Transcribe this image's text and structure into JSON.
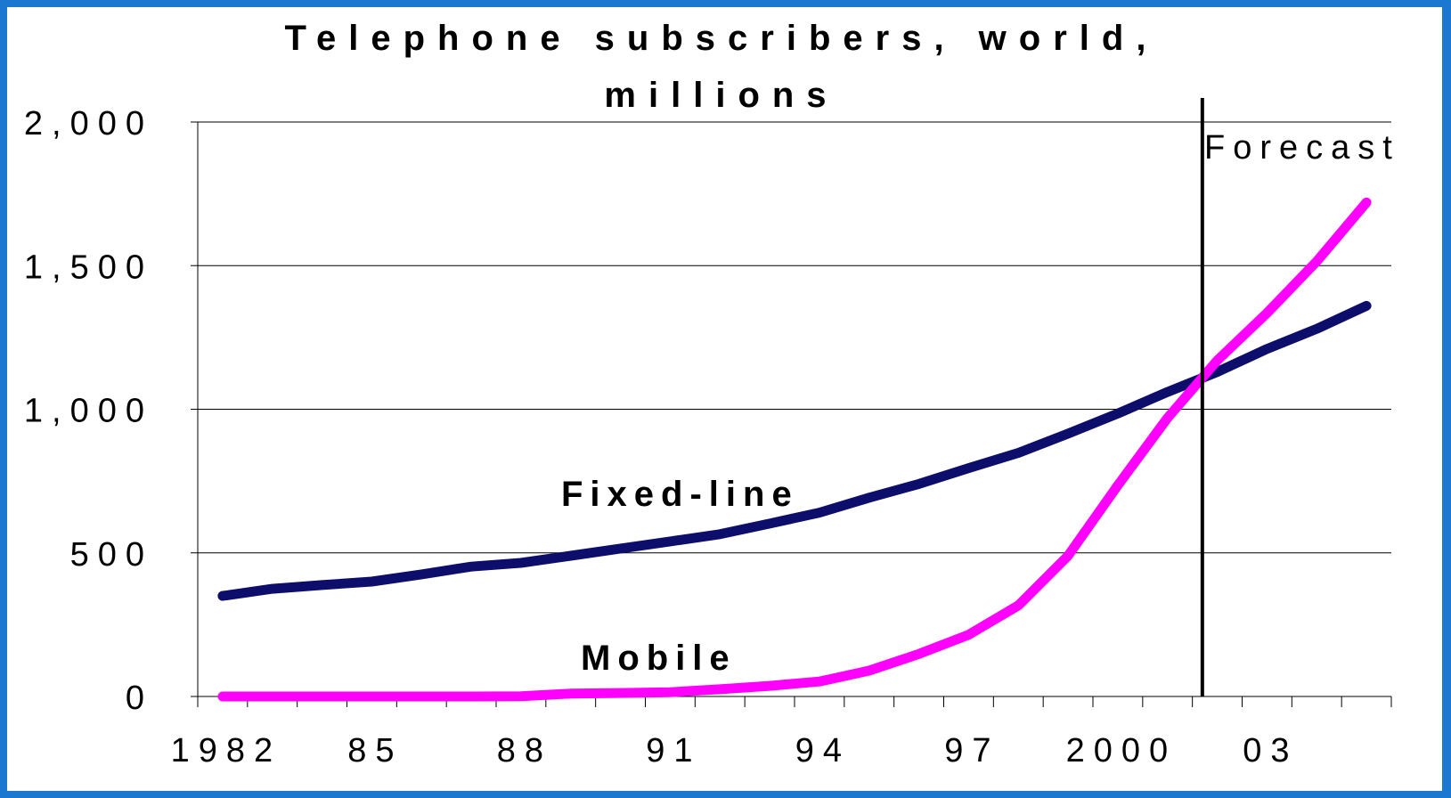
{
  "chart_data": {
    "type": "line",
    "title_lines": [
      "Telephone subscribers, world,",
      "millions"
    ],
    "xlabel": "",
    "ylabel": "",
    "x": [
      1982,
      1983,
      1984,
      1985,
      1986,
      1987,
      1988,
      1989,
      1990,
      1991,
      1992,
      1993,
      1994,
      1995,
      1996,
      1997,
      1998,
      1999,
      2000,
      2001,
      2002,
      2003,
      2004,
      2005
    ],
    "x_tick_values": [
      1982,
      1985,
      1988,
      1991,
      1994,
      1997,
      2000,
      2003
    ],
    "x_tick_labels": [
      "1982",
      "85",
      "88",
      "91",
      "94",
      "97",
      "2000",
      "03"
    ],
    "xlim": [
      1981.5,
      2005.5
    ],
    "y_ticks": [
      0,
      500,
      1000,
      1500,
      2000
    ],
    "y_tick_labels": [
      "0",
      "500",
      "1,000",
      "1,500",
      "2,000"
    ],
    "ylim": [
      0,
      2000
    ],
    "grid": "horizontal",
    "series": [
      {
        "name": "Fixed-line",
        "color": "#0d0d6b",
        "values": [
          350,
          375,
          388,
          400,
          425,
          452,
          465,
          490,
          515,
          540,
          565,
          602,
          640,
          692,
          740,
          795,
          848,
          915,
          985,
          1060,
          1130,
          1210,
          1280,
          1360
        ]
      },
      {
        "name": "Mobile",
        "color": "#ff00ff",
        "values": [
          0,
          0,
          0,
          0,
          0,
          0,
          1,
          10,
          12,
          15,
          25,
          37,
          52,
          90,
          148,
          215,
          317,
          490,
          735,
          970,
          1170,
          1335,
          1515,
          1720
        ]
      }
    ],
    "annotations": {
      "forecast_year": 2001.7,
      "forecast_label": "Forecast"
    }
  }
}
